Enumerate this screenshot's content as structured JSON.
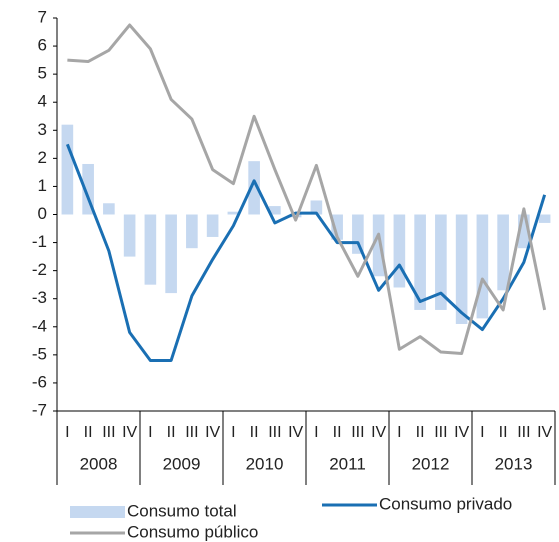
{
  "chart_data": {
    "type": "bar",
    "categories": [
      "I",
      "II",
      "III",
      "IV",
      "I",
      "II",
      "III",
      "IV",
      "I",
      "II",
      "III",
      "IV",
      "I",
      "II",
      "III",
      "IV",
      "I",
      "II",
      "III",
      "IV",
      "I",
      "II",
      "III",
      "IV"
    ],
    "groups": [
      "2008",
      "2009",
      "2010",
      "2011",
      "2012",
      "2013"
    ],
    "series": [
      {
        "name": "Consumo total",
        "type": "bar",
        "color": "#c5d8f0",
        "values": [
          3.2,
          1.8,
          0.4,
          -1.5,
          -2.5,
          -2.8,
          -1.2,
          -0.8,
          0.1,
          1.9,
          0.3,
          -0.1,
          0.5,
          -0.9,
          -1.4,
          -2.2,
          -2.6,
          -3.4,
          -3.4,
          -3.9,
          -3.7,
          -2.7,
          -1.2,
          -0.3
        ]
      },
      {
        "name": "Consumo privado",
        "type": "line",
        "color": "#1a6fb3",
        "values": [
          2.5,
          0.6,
          -1.3,
          -4.2,
          -5.2,
          -5.2,
          -2.9,
          -1.6,
          -0.4,
          1.2,
          -0.3,
          0.05,
          0.05,
          -1.0,
          -1.0,
          -2.7,
          -1.8,
          -3.1,
          -2.8,
          -3.5,
          -4.1,
          -3.0,
          -1.7,
          0.7
        ]
      },
      {
        "name": "Consumo público",
        "type": "line",
        "color": "#a6a6a6",
        "values": [
          5.5,
          5.45,
          5.85,
          6.75,
          5.9,
          4.1,
          3.4,
          1.6,
          1.1,
          3.5,
          1.6,
          -0.2,
          1.75,
          -0.8,
          -2.2,
          -0.7,
          -4.8,
          -4.35,
          -4.9,
          -4.95,
          -2.3,
          -3.4,
          0.2,
          -3.4
        ]
      }
    ],
    "ylim": [
      -7,
      7
    ],
    "yticks": [
      7,
      6,
      5,
      4,
      3,
      2,
      1,
      0,
      -1,
      -2,
      -3,
      -4,
      -5,
      -6,
      -7
    ],
    "grid": false
  }
}
